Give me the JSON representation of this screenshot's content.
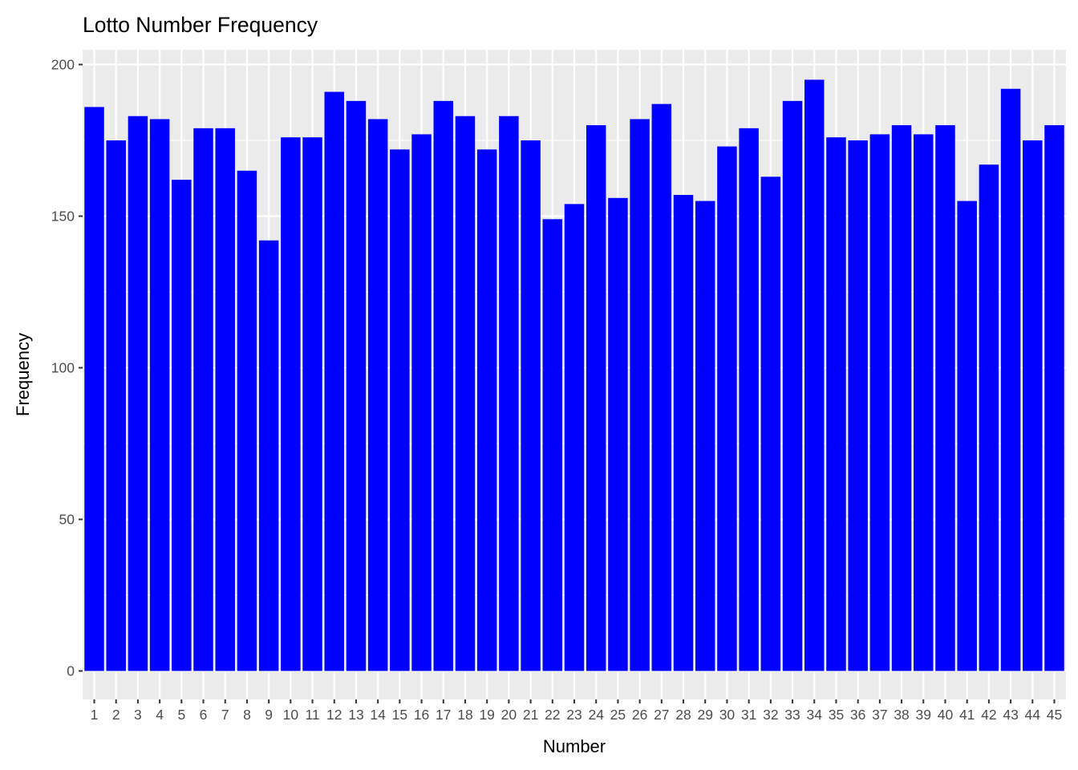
{
  "chart_data": {
    "type": "bar",
    "title": "Lotto Number Frequency",
    "xlabel": "Number",
    "ylabel": "Frequency",
    "categories": [
      "1",
      "2",
      "3",
      "4",
      "5",
      "6",
      "7",
      "8",
      "9",
      "10",
      "11",
      "12",
      "13",
      "14",
      "15",
      "16",
      "17",
      "18",
      "19",
      "20",
      "21",
      "22",
      "23",
      "24",
      "25",
      "26",
      "27",
      "28",
      "29",
      "30",
      "31",
      "32",
      "33",
      "34",
      "35",
      "36",
      "37",
      "38",
      "39",
      "40",
      "41",
      "42",
      "43",
      "44",
      "45"
    ],
    "values": [
      186,
      175,
      183,
      182,
      162,
      179,
      179,
      165,
      142,
      176,
      176,
      191,
      188,
      182,
      172,
      177,
      188,
      183,
      172,
      183,
      175,
      149,
      154,
      180,
      156,
      182,
      187,
      157,
      155,
      173,
      179,
      163,
      188,
      195,
      176,
      175,
      177,
      180,
      177,
      180,
      155,
      167,
      192,
      175,
      180
    ],
    "ylim": [
      0,
      200
    ],
    "yticks": [
      0,
      50,
      100,
      150,
      200
    ],
    "grid": true,
    "bar_color": "#0000ff",
    "panel_color": "#ebebeb",
    "grid_color": "#ffffff",
    "tick_label_color": "#4d4d4d",
    "tick_mark_color": "#333333"
  }
}
